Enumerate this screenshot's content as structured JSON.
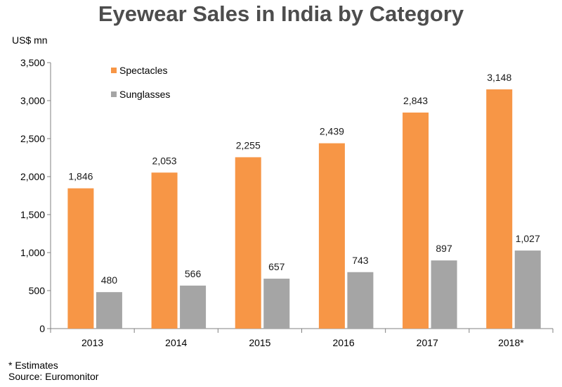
{
  "chart_data": {
    "type": "bar",
    "title": "Eyewear Sales in India by Category",
    "ylabel": "US$ mn",
    "xlabel": "",
    "categories": [
      "2013",
      "2014",
      "2015",
      "2016",
      "2017",
      "2018*"
    ],
    "series": [
      {
        "name": "Spectacles",
        "color": "#f79646",
        "values": [
          1846,
          2053,
          2255,
          2439,
          2843,
          3148
        ]
      },
      {
        "name": "Sunglasses",
        "color": "#a5a5a5",
        "values": [
          480,
          566,
          657,
          743,
          897,
          1027
        ]
      }
    ],
    "data_labels": {
      "Spectacles": [
        "1,846",
        "2,053",
        "2,255",
        "2,439",
        "2,843",
        "3,148"
      ],
      "Sunglasses": [
        "480",
        "566",
        "657",
        "743",
        "897",
        "1,027"
      ]
    },
    "ylim": [
      0,
      3500
    ],
    "yticks": [
      0,
      500,
      1000,
      1500,
      2000,
      2500,
      3000,
      3500
    ],
    "ytick_labels": [
      "0",
      "500",
      "1,000",
      "1,500",
      "2,000",
      "2,500",
      "3,000",
      "3,500"
    ],
    "grid": false,
    "legend_position": "top-left"
  },
  "footnote": {
    "note": "* Estimates",
    "source": "Source: Euromonitor"
  }
}
